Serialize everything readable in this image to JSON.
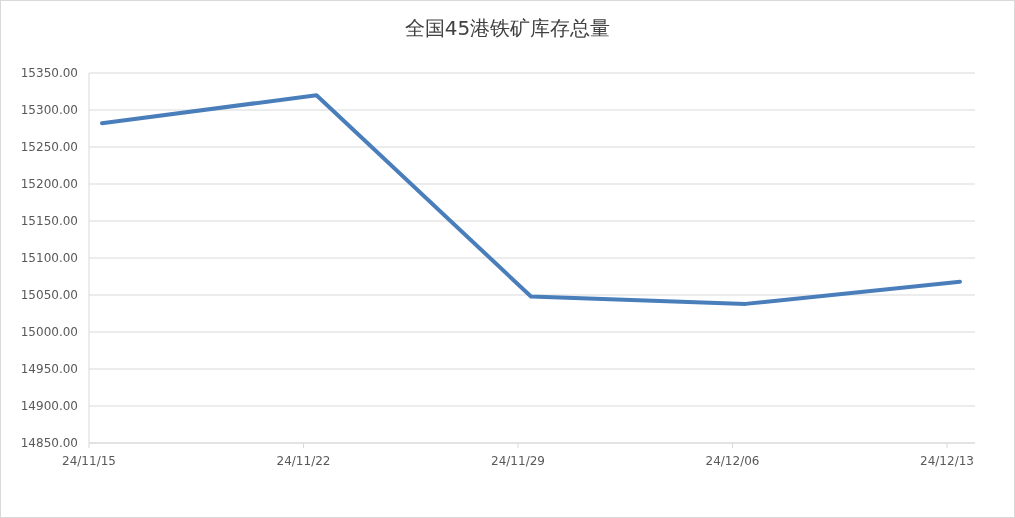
{
  "chart_data": {
    "type": "line",
    "title": "全国45港铁矿库存总量",
    "categories": [
      "24/11/15",
      "24/11/22",
      "24/11/29",
      "24/12/06",
      "24/12/13"
    ],
    "series": [
      {
        "color": "#4a7ebb",
        "values": [
          15282,
          15320,
          15048,
          15038,
          15068
        ]
      }
    ],
    "ylim": [
      14850,
      15350
    ],
    "yticks": [
      {
        "value": 14850,
        "label": "14850.00"
      },
      {
        "value": 14900,
        "label": "14900.00"
      },
      {
        "value": 14950,
        "label": "14950.00"
      },
      {
        "value": 15000,
        "label": "15000.00"
      },
      {
        "value": 15050,
        "label": "15050.00"
      },
      {
        "value": 15100,
        "label": "15100.00"
      },
      {
        "value": 15150,
        "label": "15150.00"
      },
      {
        "value": 15200,
        "label": "15200.00"
      },
      {
        "value": 15250,
        "label": "15250.00"
      },
      {
        "value": 15300,
        "label": "15300.00"
      },
      {
        "value": 15350,
        "label": "15350.00"
      }
    ],
    "grid": "y"
  }
}
